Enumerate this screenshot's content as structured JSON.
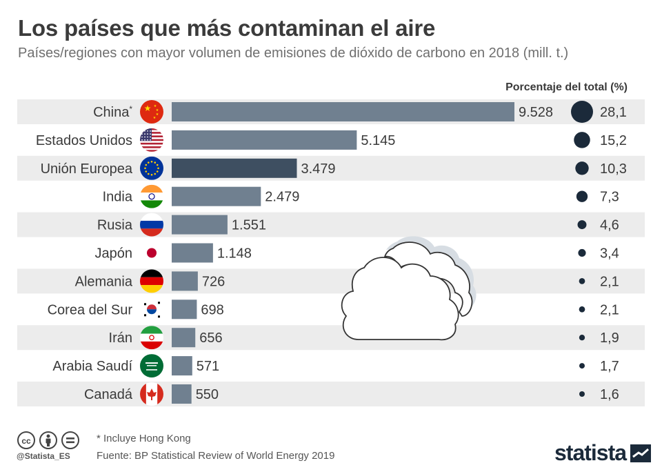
{
  "chart_data": {
    "type": "bar",
    "orientation": "horizontal",
    "title": "Los países que más contaminan el aire",
    "subtitle": "Países/regiones con mayor volumen de emisiones de dióxido de carbono en 2018 (mill. t.)",
    "percent_header": "Porcentaje del total (%)",
    "unit": "mill. t.",
    "xlim": [
      0,
      9528
    ],
    "highlight_category": "Unión Europea",
    "categories": [
      "China",
      "Estados Unidos",
      "Unión Europea",
      "India",
      "Rusia",
      "Japón",
      "Alemania",
      "Corea del Sur",
      "Irán",
      "Arabia Saudí",
      "Canadá"
    ],
    "category_markers": [
      "*",
      "",
      "",
      "",
      "",
      "",
      "",
      "",
      "",
      "",
      ""
    ],
    "values": [
      9528,
      5145,
      3479,
      2479,
      1551,
      1148,
      726,
      698,
      656,
      571,
      550
    ],
    "value_labels": [
      "9.528",
      "5.145",
      "3.479",
      "2.479",
      "1.551",
      "1.148",
      "726",
      "698",
      "656",
      "571",
      "550"
    ],
    "percent_values": [
      28.1,
      15.2,
      10.3,
      7.3,
      4.6,
      3.4,
      2.1,
      2.1,
      1.9,
      1.7,
      1.6
    ],
    "percent_labels": [
      "28,1",
      "15,2",
      "10,3",
      "7,3",
      "4,6",
      "3,4",
      "2,1",
      "2,1",
      "1,9",
      "1,7",
      "1,6"
    ],
    "flags": [
      "china-flag",
      "usa-flag",
      "eu-flag",
      "india-flag",
      "russia-flag",
      "japan-flag",
      "germany-flag",
      "south-korea-flag",
      "iran-flag",
      "saudi-arabia-flag",
      "canada-flag"
    ]
  },
  "colors": {
    "bar": "#708090",
    "bar_highlight": "#3e4f61",
    "bubble": "#1b2a3a",
    "row_band": "#ececec"
  },
  "footer": {
    "note": "* Incluye Hong Kong",
    "source": "Fuente: BP Statistical Review of World Energy 2019",
    "handle": "@Statista_ES",
    "brand": "statista",
    "license_icons": [
      "creative-commons-icon",
      "attribution-icon",
      "no-derivatives-icon"
    ]
  },
  "decoration": {
    "icon": "cloud-icon"
  }
}
